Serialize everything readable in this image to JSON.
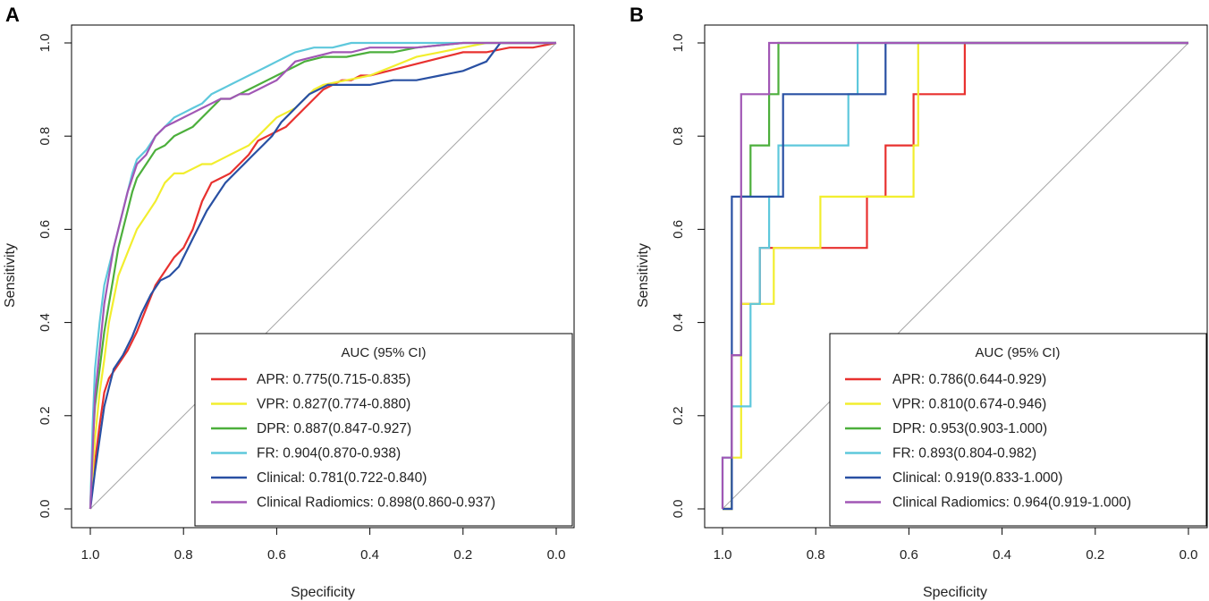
{
  "chart_data": [
    {
      "panel_label": "A",
      "type": "line",
      "title": "",
      "xlabel": "Specificity",
      "ylabel": "Sensitivity",
      "xlim": [
        1.0,
        0.0
      ],
      "ylim": [
        0.0,
        1.0
      ],
      "x_ticks": [
        "1.0",
        "0.8",
        "0.6",
        "0.4",
        "0.2",
        "0.0"
      ],
      "y_ticks": [
        "0.0",
        "0.2",
        "0.4",
        "0.6",
        "0.8",
        "1.0"
      ],
      "reference_line": true,
      "legend": {
        "title": "AUC (95% CI)",
        "position": "bottom-right"
      },
      "series": [
        {
          "name": "APR",
          "label": "APR:",
          "auc_text": "0.775(0.715-0.835)",
          "color": "#e8312f",
          "x": [
            1.0,
            0.99,
            0.98,
            0.97,
            0.96,
            0.94,
            0.92,
            0.9,
            0.88,
            0.86,
            0.84,
            0.82,
            0.8,
            0.78,
            0.76,
            0.74,
            0.72,
            0.7,
            0.68,
            0.66,
            0.64,
            0.62,
            0.6,
            0.58,
            0.56,
            0.54,
            0.52,
            0.5,
            0.48,
            0.46,
            0.44,
            0.42,
            0.4,
            0.36,
            0.32,
            0.28,
            0.24,
            0.2,
            0.15,
            0.1,
            0.05,
            0.0
          ],
          "y": [
            0.0,
            0.1,
            0.18,
            0.25,
            0.28,
            0.31,
            0.34,
            0.38,
            0.43,
            0.48,
            0.51,
            0.54,
            0.56,
            0.6,
            0.66,
            0.7,
            0.71,
            0.72,
            0.74,
            0.76,
            0.79,
            0.8,
            0.81,
            0.82,
            0.84,
            0.86,
            0.88,
            0.9,
            0.91,
            0.92,
            0.92,
            0.93,
            0.93,
            0.94,
            0.95,
            0.96,
            0.97,
            0.98,
            0.98,
            0.99,
            0.99,
            1.0
          ]
        },
        {
          "name": "VPR",
          "label": "VPR:",
          "auc_text": "0.827(0.774-0.880)",
          "color": "#f2ee2e",
          "x": [
            1.0,
            0.99,
            0.98,
            0.97,
            0.96,
            0.95,
            0.94,
            0.92,
            0.9,
            0.88,
            0.86,
            0.84,
            0.82,
            0.8,
            0.78,
            0.76,
            0.74,
            0.72,
            0.7,
            0.68,
            0.66,
            0.64,
            0.62,
            0.6,
            0.58,
            0.56,
            0.54,
            0.52,
            0.5,
            0.45,
            0.4,
            0.35,
            0.3,
            0.25,
            0.2,
            0.15,
            0.1,
            0.0
          ],
          "y": [
            0.0,
            0.15,
            0.25,
            0.32,
            0.4,
            0.45,
            0.5,
            0.55,
            0.6,
            0.63,
            0.66,
            0.7,
            0.72,
            0.72,
            0.73,
            0.74,
            0.74,
            0.75,
            0.76,
            0.77,
            0.78,
            0.8,
            0.82,
            0.84,
            0.85,
            0.86,
            0.88,
            0.9,
            0.91,
            0.92,
            0.93,
            0.95,
            0.97,
            0.98,
            0.99,
            1.0,
            1.0,
            1.0
          ]
        },
        {
          "name": "DPR",
          "label": "DPR:",
          "auc_text": "0.887(0.847-0.927)",
          "color": "#4caf3c",
          "x": [
            1.0,
            0.995,
            0.99,
            0.98,
            0.97,
            0.96,
            0.95,
            0.94,
            0.93,
            0.92,
            0.91,
            0.9,
            0.88,
            0.86,
            0.84,
            0.82,
            0.8,
            0.78,
            0.76,
            0.74,
            0.72,
            0.7,
            0.68,
            0.66,
            0.64,
            0.62,
            0.6,
            0.58,
            0.56,
            0.54,
            0.5,
            0.45,
            0.4,
            0.35,
            0.3,
            0.2,
            0.1,
            0.0
          ],
          "y": [
            0.0,
            0.14,
            0.22,
            0.3,
            0.38,
            0.44,
            0.5,
            0.56,
            0.6,
            0.64,
            0.68,
            0.71,
            0.74,
            0.77,
            0.78,
            0.8,
            0.81,
            0.82,
            0.84,
            0.86,
            0.88,
            0.88,
            0.89,
            0.9,
            0.91,
            0.92,
            0.93,
            0.94,
            0.95,
            0.96,
            0.97,
            0.97,
            0.98,
            0.98,
            0.99,
            1.0,
            1.0,
            1.0
          ]
        },
        {
          "name": "FR",
          "label": "FR:",
          "auc_text": "0.904(0.870-0.938)",
          "color": "#5ec8dc",
          "x": [
            1.0,
            0.995,
            0.99,
            0.98,
            0.97,
            0.96,
            0.95,
            0.94,
            0.93,
            0.92,
            0.91,
            0.9,
            0.88,
            0.86,
            0.84,
            0.82,
            0.8,
            0.78,
            0.76,
            0.74,
            0.72,
            0.7,
            0.68,
            0.66,
            0.64,
            0.62,
            0.6,
            0.58,
            0.56,
            0.52,
            0.48,
            0.44,
            0.4,
            0.36,
            0.3,
            0.2,
            0.1,
            0.0
          ],
          "y": [
            0.0,
            0.18,
            0.3,
            0.4,
            0.48,
            0.52,
            0.56,
            0.6,
            0.64,
            0.68,
            0.72,
            0.75,
            0.77,
            0.8,
            0.82,
            0.84,
            0.85,
            0.86,
            0.87,
            0.89,
            0.9,
            0.91,
            0.92,
            0.93,
            0.94,
            0.95,
            0.96,
            0.97,
            0.98,
            0.99,
            0.99,
            1.0,
            1.0,
            1.0,
            1.0,
            1.0,
            1.0,
            1.0
          ]
        },
        {
          "name": "Clinical",
          "label": "Clinical:",
          "auc_text": "0.781(0.722-0.840)",
          "color": "#2950a3",
          "x": [
            1.0,
            0.99,
            0.98,
            0.97,
            0.96,
            0.95,
            0.93,
            0.91,
            0.89,
            0.87,
            0.85,
            0.83,
            0.81,
            0.79,
            0.77,
            0.75,
            0.73,
            0.71,
            0.69,
            0.67,
            0.65,
            0.63,
            0.61,
            0.59,
            0.57,
            0.55,
            0.53,
            0.51,
            0.49,
            0.46,
            0.43,
            0.4,
            0.35,
            0.3,
            0.25,
            0.2,
            0.15,
            0.12,
            0.0
          ],
          "y": [
            0.0,
            0.08,
            0.15,
            0.22,
            0.26,
            0.3,
            0.33,
            0.37,
            0.42,
            0.46,
            0.49,
            0.5,
            0.52,
            0.56,
            0.6,
            0.64,
            0.67,
            0.7,
            0.72,
            0.74,
            0.76,
            0.78,
            0.8,
            0.83,
            0.85,
            0.87,
            0.89,
            0.9,
            0.91,
            0.91,
            0.91,
            0.91,
            0.92,
            0.92,
            0.93,
            0.94,
            0.96,
            1.0,
            1.0
          ]
        },
        {
          "name": "Clinical Radiomics",
          "label": "Clinical Radiomics:",
          "auc_text": "0.898(0.860-0.937)",
          "color": "#a157b5",
          "x": [
            1.0,
            0.995,
            0.99,
            0.98,
            0.97,
            0.96,
            0.95,
            0.94,
            0.93,
            0.92,
            0.91,
            0.9,
            0.88,
            0.86,
            0.84,
            0.82,
            0.8,
            0.78,
            0.76,
            0.74,
            0.72,
            0.7,
            0.68,
            0.66,
            0.64,
            0.62,
            0.6,
            0.58,
            0.56,
            0.52,
            0.48,
            0.44,
            0.4,
            0.3,
            0.2,
            0.1,
            0.0
          ],
          "y": [
            0.0,
            0.12,
            0.24,
            0.34,
            0.44,
            0.5,
            0.56,
            0.6,
            0.64,
            0.68,
            0.71,
            0.74,
            0.76,
            0.8,
            0.82,
            0.83,
            0.84,
            0.85,
            0.86,
            0.87,
            0.88,
            0.88,
            0.89,
            0.89,
            0.9,
            0.91,
            0.92,
            0.94,
            0.96,
            0.97,
            0.98,
            0.98,
            0.99,
            0.99,
            1.0,
            1.0,
            1.0
          ]
        }
      ]
    },
    {
      "panel_label": "B",
      "type": "line",
      "title": "",
      "xlabel": "Specificity",
      "ylabel": "Sensitivity",
      "xlim": [
        1.0,
        0.0
      ],
      "ylim": [
        0.0,
        1.0
      ],
      "x_ticks": [
        "1.0",
        "0.8",
        "0.6",
        "0.4",
        "0.2",
        "0.0"
      ],
      "y_ticks": [
        "0.0",
        "0.2",
        "0.4",
        "0.6",
        "0.8",
        "1.0"
      ],
      "reference_line": true,
      "legend": {
        "title": "AUC (95% CI)",
        "position": "bottom-right"
      },
      "series": [
        {
          "name": "APR",
          "label": "APR:",
          "auc_text": "0.786(0.644-0.929)",
          "color": "#e8312f",
          "x": [
            1.0,
            0.98,
            0.98,
            0.96,
            0.96,
            0.94,
            0.94,
            0.92,
            0.92,
            0.79,
            0.79,
            0.69,
            0.69,
            0.65,
            0.65,
            0.59,
            0.59,
            0.48,
            0.48,
            0.0
          ],
          "y": [
            0.0,
            0.0,
            0.33,
            0.33,
            0.44,
            0.44,
            0.44,
            0.44,
            0.56,
            0.56,
            0.56,
            0.56,
            0.67,
            0.67,
            0.78,
            0.78,
            0.89,
            0.89,
            1.0,
            1.0
          ]
        },
        {
          "name": "VPR",
          "label": "VPR:",
          "auc_text": "0.810(0.674-0.946)",
          "color": "#f2ee2e",
          "x": [
            1.0,
            0.98,
            0.98,
            0.96,
            0.96,
            0.89,
            0.89,
            0.79,
            0.79,
            0.59,
            0.59,
            0.58,
            0.58,
            0.0
          ],
          "y": [
            0.0,
            0.0,
            0.11,
            0.11,
            0.44,
            0.44,
            0.56,
            0.56,
            0.67,
            0.67,
            0.78,
            0.78,
            1.0,
            1.0
          ]
        },
        {
          "name": "DPR",
          "label": "DPR:",
          "auc_text": "0.953(0.903-1.000)",
          "color": "#4caf3c",
          "x": [
            1.0,
            0.98,
            0.98,
            0.96,
            0.96,
            0.94,
            0.94,
            0.9,
            0.9,
            0.88,
            0.88,
            0.0
          ],
          "y": [
            0.0,
            0.0,
            0.33,
            0.33,
            0.67,
            0.67,
            0.78,
            0.78,
            0.89,
            0.89,
            1.0,
            1.0
          ]
        },
        {
          "name": "FR",
          "label": "FR:",
          "auc_text": "0.893(0.804-0.982)",
          "color": "#5ec8dc",
          "x": [
            1.0,
            1.0,
            0.98,
            0.98,
            0.94,
            0.94,
            0.92,
            0.92,
            0.9,
            0.9,
            0.88,
            0.88,
            0.73,
            0.73,
            0.71,
            0.71,
            0.0
          ],
          "y": [
            0.0,
            0.11,
            0.11,
            0.22,
            0.22,
            0.44,
            0.44,
            0.56,
            0.56,
            0.67,
            0.67,
            0.78,
            0.78,
            0.89,
            0.89,
            1.0,
            1.0
          ]
        },
        {
          "name": "Clinical",
          "label": "Clinical:",
          "auc_text": "0.919(0.833-1.000)",
          "color": "#2950a3",
          "x": [
            1.0,
            0.98,
            0.98,
            0.98,
            0.98,
            0.87,
            0.87,
            0.65,
            0.65,
            0.0
          ],
          "y": [
            0.0,
            0.0,
            0.33,
            0.33,
            0.67,
            0.67,
            0.89,
            0.89,
            1.0,
            1.0
          ]
        },
        {
          "name": "Clinical Radiomics",
          "label": "Clinical Radiomics:",
          "auc_text": "0.964(0.919-1.000)",
          "color": "#a157b5",
          "x": [
            1.0,
            1.0,
            0.98,
            0.98,
            0.96,
            0.96,
            0.9,
            0.9,
            0.0
          ],
          "y": [
            0.0,
            0.11,
            0.11,
            0.33,
            0.33,
            0.89,
            0.89,
            1.0,
            1.0
          ]
        }
      ]
    }
  ]
}
